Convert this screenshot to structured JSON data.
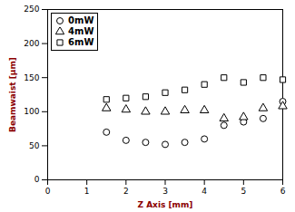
{
  "chart_data": {
    "type": "scatter",
    "xlabel": "Z Axis [mm]",
    "ylabel": "Beamwaist [μm]",
    "xlim": [
      0,
      6
    ],
    "ylim": [
      0,
      250
    ],
    "xticks": [
      0,
      1,
      2,
      3,
      4,
      5,
      6
    ],
    "yticks": [
      0,
      50,
      100,
      150,
      200,
      250
    ],
    "grid": false,
    "legend": "upper left",
    "color": "black",
    "series": [
      {
        "name": "0mW",
        "marker": "circle",
        "x": [
          1.5,
          2.0,
          2.5,
          3.0,
          3.5,
          4.0,
          4.5,
          5.0,
          5.5,
          6.0
        ],
        "values": [
          70,
          58,
          55,
          52,
          55,
          60,
          80,
          85,
          90,
          115
        ]
      },
      {
        "name": "4mW",
        "marker": "triangle",
        "x": [
          1.5,
          2.0,
          2.5,
          3.0,
          3.5,
          4.0,
          4.5,
          5.0,
          5.5,
          6.0
        ],
        "values": [
          105,
          103,
          100,
          100,
          102,
          102,
          90,
          92,
          105,
          108
        ]
      },
      {
        "name": "6mW",
        "marker": "square",
        "x": [
          1.5,
          2.0,
          2.5,
          3.0,
          3.5,
          4.0,
          4.5,
          5.0,
          5.5,
          6.0
        ],
        "values": [
          118,
          120,
          122,
          128,
          132,
          140,
          150,
          143,
          150,
          147
        ]
      }
    ]
  }
}
